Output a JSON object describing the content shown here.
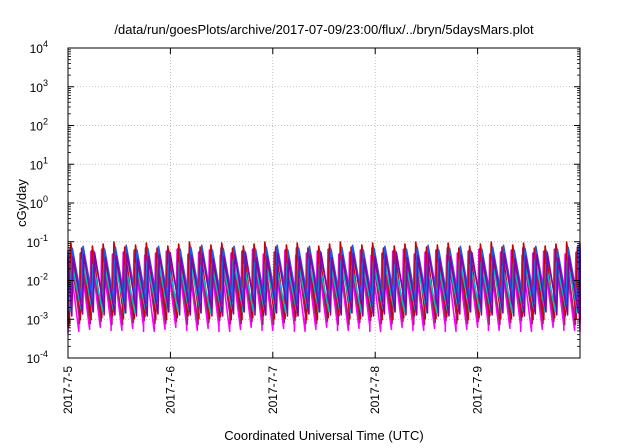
{
  "chart_data": {
    "type": "line",
    "title": "/data/run/goesPlots/archive/2017-07-09/23:00/flux/../bryn/5daysMars.plot",
    "xlabel": "Coordinated Universal Time (UTC)",
    "ylabel": "cGy/day",
    "yscale": "log",
    "ylim": [
      0.0001,
      10000
    ],
    "xlim": [
      "2017-07-05",
      "2017-07-10"
    ],
    "grid": true,
    "x_ticks": [
      "2017-7-5",
      "2017-7-6",
      "2017-7-7",
      "2017-7-8",
      "2017-7-9"
    ],
    "y_ticks": [
      {
        "value": 0.0001,
        "base": "10",
        "exp": "-4"
      },
      {
        "value": 0.001,
        "base": "10",
        "exp": "-3"
      },
      {
        "value": 0.01,
        "base": "10",
        "exp": "-2"
      },
      {
        "value": 0.1,
        "base": "10",
        "exp": "-1"
      },
      {
        "value": 1,
        "base": "10",
        "exp": "0"
      },
      {
        "value": 10,
        "base": "10",
        "exp": "1"
      },
      {
        "value": 100,
        "base": "10",
        "exp": "2"
      },
      {
        "value": 1000,
        "base": "10",
        "exp": "3"
      },
      {
        "value": 10000,
        "base": "10",
        "exp": "4"
      }
    ],
    "cycles_per_day": 9.5,
    "series": [
      {
        "color": "#ff00ff",
        "peak": 0.055,
        "trough": 0.0006
      },
      {
        "color": "#a0206a",
        "peak": 0.06,
        "trough": 0.0009
      },
      {
        "color": "#cc0000",
        "peak": 0.085,
        "trough": 0.0012
      },
      {
        "color": "#00bbbb",
        "peak": 0.03,
        "trough": 0.0018
      },
      {
        "color": "#2255ee",
        "peak": 0.07,
        "trough": 0.003
      },
      {
        "color": "#8800aa",
        "peak": 0.045,
        "trough": 0.0015
      }
    ]
  }
}
